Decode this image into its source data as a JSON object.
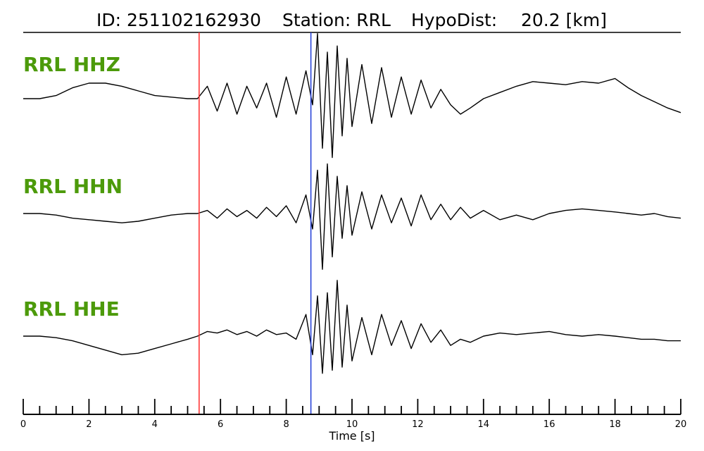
{
  "header": {
    "id_text": "ID: 251102162930",
    "station_text": "Station: RRL",
    "hypodist_text": "HypoDist:",
    "distance_text": "20.2 [km]"
  },
  "colors": {
    "label": "#4c9a0a",
    "p_pick": "#ff2a2a",
    "s_pick": "#1f3bd6",
    "trace": "#000000"
  },
  "chart_data": {
    "type": "line",
    "xlabel": "Time [s]",
    "xlim": [
      0,
      20
    ],
    "major_ticks": [
      0,
      2,
      4,
      6,
      8,
      10,
      12,
      14,
      16,
      18,
      20
    ],
    "minor_tick_step": 0.5,
    "grid": false,
    "picks": [
      {
        "phase": "P",
        "time": 5.35,
        "color": "#ff2a2a"
      },
      {
        "phase": "S",
        "time": 8.75,
        "color": "#1f3bd6"
      }
    ],
    "series": [
      {
        "name": "RRL HHZ",
        "x": [
          0.0,
          0.5,
          1.0,
          1.5,
          2.0,
          2.5,
          3.0,
          3.5,
          4.0,
          4.5,
          5.0,
          5.3,
          5.6,
          5.9,
          6.2,
          6.5,
          6.8,
          7.1,
          7.4,
          7.7,
          8.0,
          8.3,
          8.6,
          8.8,
          8.95,
          9.1,
          9.25,
          9.4,
          9.55,
          9.7,
          9.85,
          10.0,
          10.3,
          10.6,
          10.9,
          11.2,
          11.5,
          11.8,
          12.1,
          12.4,
          12.7,
          13.0,
          13.3,
          13.6,
          14.0,
          14.5,
          15.0,
          15.5,
          16.0,
          16.5,
          17.0,
          17.5,
          18.0,
          18.4,
          18.8,
          19.2,
          19.6,
          20.0
        ],
        "y": [
          0.0,
          0.0,
          0.1,
          0.35,
          0.5,
          0.5,
          0.4,
          0.25,
          0.1,
          0.05,
          0.0,
          0.0,
          0.4,
          -0.4,
          0.5,
          -0.5,
          0.4,
          -0.3,
          0.5,
          -0.6,
          0.7,
          -0.5,
          0.9,
          -0.2,
          2.1,
          -1.6,
          1.5,
          -1.9,
          1.7,
          -1.2,
          1.3,
          -0.9,
          1.1,
          -0.8,
          1.0,
          -0.6,
          0.7,
          -0.5,
          0.6,
          -0.3,
          0.3,
          -0.2,
          -0.5,
          -0.3,
          0.0,
          0.2,
          0.4,
          0.55,
          0.5,
          0.45,
          0.55,
          0.5,
          0.65,
          0.35,
          0.1,
          -0.1,
          -0.3,
          -0.45
        ]
      },
      {
        "name": "RRL HHN",
        "x": [
          0.0,
          0.5,
          1.0,
          1.5,
          2.0,
          2.5,
          3.0,
          3.5,
          4.0,
          4.5,
          5.0,
          5.3,
          5.6,
          5.9,
          6.2,
          6.5,
          6.8,
          7.1,
          7.4,
          7.7,
          8.0,
          8.3,
          8.6,
          8.8,
          8.95,
          9.1,
          9.25,
          9.4,
          9.55,
          9.7,
          9.85,
          10.0,
          10.3,
          10.6,
          10.9,
          11.2,
          11.5,
          11.8,
          12.1,
          12.4,
          12.7,
          13.0,
          13.3,
          13.6,
          14.0,
          14.5,
          15.0,
          15.5,
          16.0,
          16.5,
          17.0,
          17.5,
          18.0,
          18.4,
          18.8,
          19.2,
          19.6,
          20.0
        ],
        "y": [
          0.0,
          0.0,
          -0.05,
          -0.15,
          -0.2,
          -0.25,
          -0.3,
          -0.25,
          -0.15,
          -0.05,
          0.0,
          0.0,
          0.1,
          -0.15,
          0.15,
          -0.1,
          0.1,
          -0.15,
          0.2,
          -0.1,
          0.25,
          -0.3,
          0.6,
          -0.5,
          1.4,
          -1.8,
          1.6,
          -1.4,
          1.2,
          -0.8,
          0.9,
          -0.7,
          0.7,
          -0.5,
          0.6,
          -0.3,
          0.5,
          -0.4,
          0.6,
          -0.2,
          0.3,
          -0.2,
          0.2,
          -0.15,
          0.1,
          -0.2,
          -0.05,
          -0.2,
          0.0,
          0.1,
          0.15,
          0.1,
          0.05,
          0.0,
          -0.05,
          0.0,
          -0.1,
          -0.15
        ]
      },
      {
        "name": "RRL HHE",
        "x": [
          0.0,
          0.5,
          1.0,
          1.5,
          2.0,
          2.5,
          3.0,
          3.5,
          4.0,
          4.5,
          5.0,
          5.3,
          5.6,
          5.9,
          6.2,
          6.5,
          6.8,
          7.1,
          7.4,
          7.7,
          8.0,
          8.3,
          8.6,
          8.8,
          8.95,
          9.1,
          9.25,
          9.4,
          9.55,
          9.7,
          9.85,
          10.0,
          10.3,
          10.6,
          10.9,
          11.2,
          11.5,
          11.8,
          12.1,
          12.4,
          12.7,
          13.0,
          13.3,
          13.6,
          14.0,
          14.5,
          15.0,
          15.5,
          16.0,
          16.5,
          17.0,
          17.5,
          18.0,
          18.4,
          18.8,
          19.2,
          19.6,
          20.0
        ],
        "y": [
          0.0,
          0.0,
          -0.05,
          -0.15,
          -0.3,
          -0.45,
          -0.6,
          -0.55,
          -0.4,
          -0.25,
          -0.1,
          0.0,
          0.15,
          0.1,
          0.2,
          0.05,
          0.15,
          0.0,
          0.2,
          0.05,
          0.1,
          -0.1,
          0.7,
          -0.6,
          1.3,
          -1.2,
          1.4,
          -1.1,
          1.8,
          -1.0,
          1.0,
          -0.8,
          0.6,
          -0.6,
          0.7,
          -0.3,
          0.5,
          -0.4,
          0.4,
          -0.2,
          0.2,
          -0.3,
          -0.1,
          -0.2,
          0.0,
          0.1,
          0.05,
          0.1,
          0.15,
          0.05,
          0.0,
          0.05,
          0.0,
          -0.05,
          -0.1,
          -0.1,
          -0.15,
          -0.15
        ]
      }
    ]
  }
}
